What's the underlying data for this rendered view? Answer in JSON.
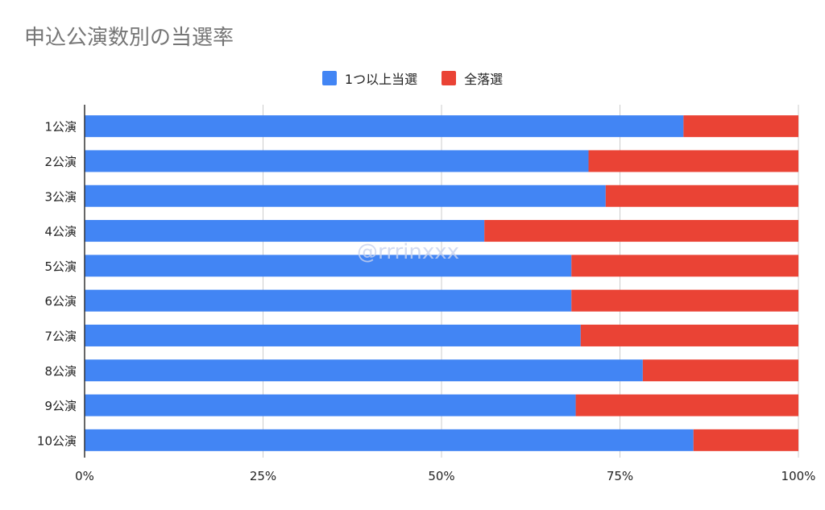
{
  "chart_data": {
    "type": "bar",
    "orientation": "horizontal",
    "stacked": "percent",
    "title": "申込公演数別の当選率",
    "categories": [
      "1公演",
      "2公演",
      "3公演",
      "4公演",
      "5公演",
      "6公演",
      "7公演",
      "8公演",
      "9公演",
      "10公演"
    ],
    "series": [
      {
        "name": "1つ以上当選",
        "color": "#4285f4",
        "values": [
          83.9,
          70.6,
          73.0,
          56.0,
          68.2,
          68.2,
          69.5,
          78.2,
          68.8,
          85.3
        ]
      },
      {
        "name": "全落選",
        "color": "#ea4335",
        "values": [
          16.1,
          29.4,
          27.0,
          44.0,
          31.8,
          31.8,
          30.5,
          21.8,
          31.2,
          14.7
        ]
      }
    ],
    "xlim": [
      0,
      100
    ],
    "xticks": [
      "0%",
      "25%",
      "50%",
      "75%",
      "100%"
    ],
    "grid": true,
    "legend_position": "top-center",
    "watermark": "@rrrinxxx"
  }
}
